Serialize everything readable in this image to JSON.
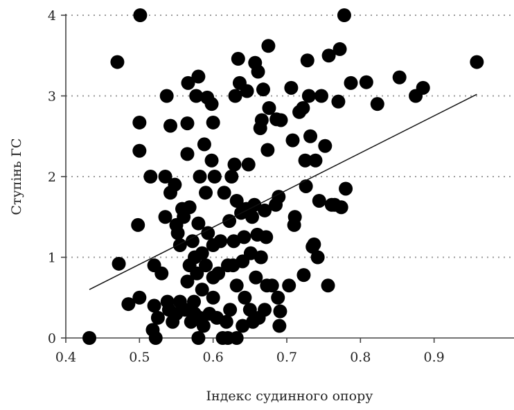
{
  "chart_data": {
    "type": "scatter",
    "title": "",
    "xlabel": "Індекс судинного опору",
    "ylabel": "Ступінь ГС",
    "xlim": [
      0.4,
      1.0
    ],
    "ylim": [
      0,
      4
    ],
    "x_ticks": [
      "0.4",
      "0.5",
      "0.6",
      "0.7",
      "0.8",
      "0.9"
    ],
    "x_tick_values": [
      0.4,
      0.5,
      0.6,
      0.7,
      0.8,
      0.9
    ],
    "y_ticks": [
      "0",
      "1",
      "2",
      "3",
      "4"
    ],
    "y_tick_values": [
      0,
      1,
      2,
      3,
      4
    ],
    "grid": "horizontal dotted",
    "trendline": {
      "x": [
        0.432,
        0.958
      ],
      "y": [
        0.6,
        3.02
      ]
    },
    "points": [
      [
        0.432,
        0.0
      ],
      [
        0.472,
        0.92
      ],
      [
        0.47,
        3.42
      ],
      [
        0.485,
        0.42
      ],
      [
        0.5,
        0.5
      ],
      [
        0.498,
        1.4
      ],
      [
        0.5,
        2.32
      ],
      [
        0.5,
        2.67
      ],
      [
        0.501,
        4.0
      ],
      [
        0.515,
        2.0
      ],
      [
        0.518,
        0.1
      ],
      [
        0.52,
        0.9
      ],
      [
        0.52,
        0.4
      ],
      [
        0.522,
        0.0
      ],
      [
        0.525,
        0.25
      ],
      [
        0.53,
        0.8
      ],
      [
        0.535,
        2.0
      ],
      [
        0.535,
        1.5
      ],
      [
        0.537,
        3.0
      ],
      [
        0.538,
        0.45
      ],
      [
        0.54,
        0.35
      ],
      [
        0.542,
        1.8
      ],
      [
        0.542,
        2.63
      ],
      [
        0.545,
        0.2
      ],
      [
        0.548,
        1.9
      ],
      [
        0.55,
        1.4
      ],
      [
        0.55,
        0.3
      ],
      [
        0.552,
        1.3
      ],
      [
        0.555,
        1.15
      ],
      [
        0.555,
        0.45
      ],
      [
        0.558,
        1.6
      ],
      [
        0.56,
        1.5
      ],
      [
        0.562,
        0.35
      ],
      [
        0.565,
        0.7
      ],
      [
        0.565,
        2.28
      ],
      [
        0.565,
        2.66
      ],
      [
        0.566,
        3.16
      ],
      [
        0.568,
        0.9
      ],
      [
        0.568,
        1.62
      ],
      [
        0.57,
        0.2
      ],
      [
        0.572,
        1.2
      ],
      [
        0.574,
        0.45
      ],
      [
        0.575,
        1.0
      ],
      [
        0.575,
        0.3
      ],
      [
        0.577,
        3.0
      ],
      [
        0.578,
        0.8
      ],
      [
        0.58,
        0.0
      ],
      [
        0.58,
        1.42
      ],
      [
        0.58,
        3.24
      ],
      [
        0.582,
        0.25
      ],
      [
        0.582,
        2.0
      ],
      [
        0.585,
        1.05
      ],
      [
        0.585,
        0.6
      ],
      [
        0.587,
        0.15
      ],
      [
        0.588,
        2.4
      ],
      [
        0.59,
        0.9
      ],
      [
        0.59,
        1.8
      ],
      [
        0.592,
        2.98
      ],
      [
        0.593,
        1.3
      ],
      [
        0.595,
        0.3
      ],
      [
        0.598,
        2.2
      ],
      [
        0.598,
        2.9
      ],
      [
        0.6,
        0.5
      ],
      [
        0.6,
        0.75
      ],
      [
        0.6,
        1.15
      ],
      [
        0.6,
        2.67
      ],
      [
        0.602,
        2.0
      ],
      [
        0.605,
        0.25
      ],
      [
        0.607,
        0.8
      ],
      [
        0.61,
        1.2
      ],
      [
        0.613,
        0.0
      ],
      [
        0.615,
        1.8
      ],
      [
        0.618,
        0.2
      ],
      [
        0.62,
        0.9
      ],
      [
        0.62,
        0.0
      ],
      [
        0.622,
        1.45
      ],
      [
        0.623,
        0.35
      ],
      [
        0.625,
        2.0
      ],
      [
        0.627,
        0.9
      ],
      [
        0.628,
        1.2
      ],
      [
        0.629,
        2.15
      ],
      [
        0.63,
        3.0
      ],
      [
        0.632,
        0.0
      ],
      [
        0.632,
        0.65
      ],
      [
        0.632,
        1.7
      ],
      [
        0.634,
        3.46
      ],
      [
        0.636,
        3.16
      ],
      [
        0.638,
        1.55
      ],
      [
        0.64,
        0.15
      ],
      [
        0.64,
        0.95
      ],
      [
        0.642,
        1.25
      ],
      [
        0.643,
        0.5
      ],
      [
        0.645,
        1.6
      ],
      [
        0.646,
        3.06
      ],
      [
        0.648,
        2.15
      ],
      [
        0.65,
        0.35
      ],
      [
        0.651,
        1.05
      ],
      [
        0.653,
        1.5
      ],
      [
        0.654,
        0.2
      ],
      [
        0.656,
        1.65
      ],
      [
        0.657,
        3.41
      ],
      [
        0.658,
        0.75
      ],
      [
        0.66,
        1.28
      ],
      [
        0.661,
        3.3
      ],
      [
        0.662,
        0.25
      ],
      [
        0.664,
        2.6
      ],
      [
        0.665,
        1.0
      ],
      [
        0.666,
        2.7
      ],
      [
        0.668,
        3.08
      ],
      [
        0.67,
        0.35
      ],
      [
        0.67,
        1.58
      ],
      [
        0.672,
        1.25
      ],
      [
        0.673,
        0.65
      ],
      [
        0.674,
        2.33
      ],
      [
        0.675,
        3.62
      ],
      [
        0.676,
        2.85
      ],
      [
        0.68,
        0.65
      ],
      [
        0.685,
        1.65
      ],
      [
        0.686,
        2.71
      ],
      [
        0.688,
        0.5
      ],
      [
        0.689,
        1.75
      ],
      [
        0.69,
        0.15
      ],
      [
        0.691,
        0.33
      ],
      [
        0.692,
        2.7
      ],
      [
        0.703,
        0.65
      ],
      [
        0.706,
        3.1
      ],
      [
        0.708,
        2.45
      ],
      [
        0.71,
        1.4
      ],
      [
        0.711,
        1.5
      ],
      [
        0.717,
        2.8
      ],
      [
        0.722,
        2.85
      ],
      [
        0.723,
        0.78
      ],
      [
        0.725,
        2.2
      ],
      [
        0.726,
        1.88
      ],
      [
        0.728,
        3.44
      ],
      [
        0.73,
        3.0
      ],
      [
        0.732,
        2.5
      ],
      [
        0.735,
        1.13
      ],
      [
        0.737,
        1.16
      ],
      [
        0.739,
        2.2
      ],
      [
        0.742,
        1.0
      ],
      [
        0.744,
        1.7
      ],
      [
        0.747,
        3.0
      ],
      [
        0.752,
        2.38
      ],
      [
        0.756,
        0.65
      ],
      [
        0.757,
        3.5
      ],
      [
        0.761,
        1.65
      ],
      [
        0.765,
        1.65
      ],
      [
        0.77,
        2.93
      ],
      [
        0.772,
        3.58
      ],
      [
        0.774,
        1.62
      ],
      [
        0.778,
        4.0
      ],
      [
        0.78,
        1.85
      ],
      [
        0.787,
        3.16
      ],
      [
        0.808,
        3.17
      ],
      [
        0.823,
        2.9
      ],
      [
        0.853,
        3.23
      ],
      [
        0.875,
        3.0
      ],
      [
        0.885,
        3.1
      ],
      [
        0.958,
        3.42
      ]
    ]
  }
}
